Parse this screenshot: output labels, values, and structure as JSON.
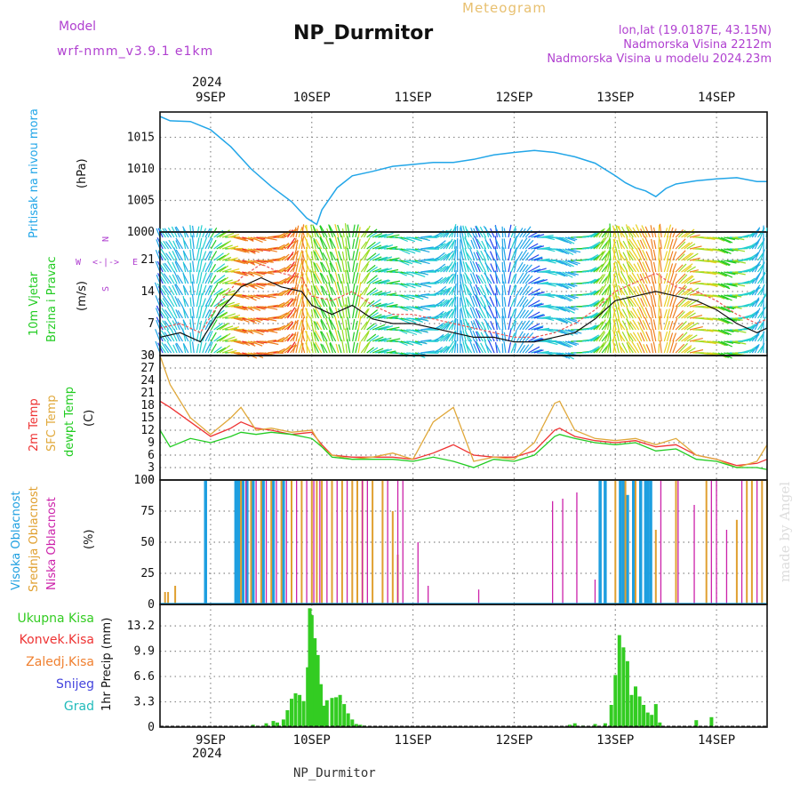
{
  "header": {
    "model_label": "Model",
    "model_name": "wrf-nmm_v3.9.1 e1km",
    "title": "NP_Durmitor",
    "subtitle": "Meteogram",
    "coords": "lon,lat (19.0187E, 43.15N)",
    "elevation": "Nadmorska Visina 2212m",
    "model_elevation": "Nadmorska Visina u modelu 2024.23m",
    "footer": "NP_Durmitor",
    "watermark": "made by Angel",
    "year_top": "2024",
    "year_bottom": "2024"
  },
  "colors": {
    "pressure": "#22a6e8",
    "temp2m": "#ee3333",
    "sfc": "#e0a83a",
    "dew": "#22cc22",
    "high_cloud": "#1e9fe0",
    "mid_cloud": "#e0a030",
    "low_cloud": "#cc22aa",
    "precip": "#33cc22",
    "label_purple": "#b040d0",
    "label_gold": "#e8c070"
  },
  "chart_data": [
    {
      "type": "line",
      "panel": "pressure",
      "ylabel_main": "Pritisak na nivou mora",
      "ylabel_unit": "(hPa)",
      "yticks": [
        1000,
        1005,
        1010,
        1015
      ],
      "ylim": [
        1000,
        1019
      ],
      "x_day_labels": [
        "9SEP",
        "10SEP",
        "11SEP",
        "12SEP",
        "13SEP",
        "14SEP"
      ],
      "xlim_days": [
        -0.5,
        5.5
      ],
      "x": [
        -0.5,
        -0.4,
        -0.2,
        0.0,
        0.2,
        0.4,
        0.6,
        0.8,
        0.95,
        1.05,
        1.1,
        1.25,
        1.4,
        1.6,
        1.8,
        2.0,
        2.2,
        2.4,
        2.6,
        2.8,
        3.0,
        3.2,
        3.4,
        3.6,
        3.8,
        4.0,
        4.1,
        4.2,
        4.3,
        4.4,
        4.5,
        4.6,
        4.8,
        5.0,
        5.2,
        5.4,
        5.5
      ],
      "y": [
        1018.3,
        1017.6,
        1017.5,
        1016.2,
        1013.5,
        1010.0,
        1007.2,
        1004.8,
        1002.2,
        1001.2,
        1003.5,
        1007.0,
        1008.9,
        1009.6,
        1010.4,
        1010.7,
        1011.0,
        1011.0,
        1011.5,
        1012.2,
        1012.6,
        1012.9,
        1012.6,
        1011.9,
        1010.9,
        1008.9,
        1007.8,
        1007.0,
        1006.5,
        1005.6,
        1006.9,
        1007.6,
        1008.1,
        1008.4,
        1008.6,
        1008.0,
        1008.0
      ]
    },
    {
      "type": "line",
      "panel": "wind",
      "ylabel_main": "10m Vjetar",
      "ylabel_sub": "Brzina i Pravac",
      "ylabel_unit": "(m/s)",
      "compass": [
        "N",
        "E",
        "S",
        "W"
      ],
      "yticks": [
        0,
        7,
        14,
        21
      ],
      "ylim": [
        0,
        27
      ],
      "x": [
        -0.5,
        -0.3,
        -0.1,
        0.1,
        0.3,
        0.5,
        0.7,
        0.9,
        1.0,
        1.2,
        1.4,
        1.6,
        1.8,
        2.0,
        2.2,
        2.4,
        2.6,
        2.8,
        3.0,
        3.2,
        3.4,
        3.6,
        3.8,
        4.0,
        4.2,
        4.4,
        4.6,
        4.8,
        5.0,
        5.2,
        5.4,
        5.5
      ],
      "series": [
        {
          "name": "wind_speed",
          "values": [
            4,
            5,
            3,
            10,
            15,
            17,
            15,
            14,
            11,
            9,
            11,
            8,
            7,
            7,
            6,
            5,
            4,
            4,
            3,
            3,
            4,
            5,
            8,
            12,
            13,
            14,
            13,
            12,
            10,
            7,
            5,
            6
          ]
        },
        {
          "name": "gust",
          "values": [
            6,
            7,
            5,
            12,
            17,
            20,
            18,
            17,
            13,
            12,
            14,
            11,
            9,
            9,
            8,
            7,
            6,
            5,
            4,
            4,
            5,
            7,
            10,
            14,
            16,
            18,
            15,
            14,
            12,
            9,
            7,
            8
          ]
        }
      ]
    },
    {
      "type": "line",
      "panel": "temperature",
      "ylabel_lines": [
        "2m Temp",
        "SFC Temp",
        "dewpt Temp"
      ],
      "ylabel_unit": "(C)",
      "yticks": [
        0,
        3,
        6,
        9,
        12,
        15,
        18,
        21,
        24,
        27,
        30
      ],
      "ylim": [
        0,
        30
      ],
      "x": [
        -0.5,
        -0.4,
        -0.2,
        0.0,
        0.2,
        0.3,
        0.45,
        0.6,
        0.8,
        1.0,
        1.1,
        1.2,
        1.4,
        1.6,
        1.8,
        2.0,
        2.2,
        2.4,
        2.6,
        2.8,
        3.0,
        3.2,
        3.4,
        3.45,
        3.6,
        3.8,
        4.0,
        4.2,
        4.4,
        4.6,
        4.8,
        5.0,
        5.2,
        5.4,
        5.5
      ],
      "series": [
        {
          "name": "2m Temp",
          "values": [
            19.0,
            17.5,
            14.0,
            10.5,
            12.5,
            14.0,
            12.5,
            12.0,
            11.0,
            11.5,
            8.5,
            6.0,
            5.5,
            5.5,
            5.5,
            5.0,
            6.5,
            8.5,
            6.0,
            5.5,
            5.5,
            7.0,
            12.0,
            12.5,
            10.5,
            9.5,
            9.0,
            9.5,
            8.0,
            8.5,
            6.0,
            5.0,
            3.5,
            4.0,
            5.0
          ]
        },
        {
          "name": "SFC Temp",
          "values": [
            30.0,
            23.0,
            15.0,
            11.0,
            15.0,
            17.5,
            12.0,
            12.5,
            11.5,
            12.0,
            8.0,
            6.0,
            5.0,
            5.5,
            6.5,
            5.0,
            14.0,
            17.5,
            4.5,
            5.5,
            5.0,
            9.0,
            18.5,
            19.0,
            12.0,
            10.0,
            9.5,
            10.0,
            8.5,
            10.0,
            6.0,
            5.0,
            3.0,
            4.5,
            8.5
          ]
        },
        {
          "name": "dewpt Temp",
          "values": [
            12.0,
            8.0,
            10.0,
            9.0,
            10.5,
            11.5,
            11.0,
            11.5,
            11.0,
            10.0,
            8.0,
            5.5,
            5.0,
            5.0,
            5.0,
            4.5,
            5.5,
            4.5,
            3.0,
            5.0,
            4.5,
            6.0,
            10.5,
            11.0,
            10.0,
            9.0,
            8.5,
            9.0,
            7.0,
            7.5,
            5.0,
            4.5,
            3.0,
            3.0,
            2.5
          ]
        }
      ]
    },
    {
      "type": "bar",
      "panel": "cloud",
      "ylabel_lines": [
        "Visoka Oblacnost",
        "Srednja Oblacnost",
        "Niska Oblacnost"
      ],
      "ylabel_unit": "(%)",
      "yticks": [
        0,
        25,
        50,
        75,
        100
      ],
      "ylim": [
        0,
        100
      ],
      "series": [
        {
          "name": "Visoka Oblacnost",
          "x": [
            -0.05,
            0.25,
            0.28,
            0.32,
            0.36,
            0.42,
            0.52,
            0.62,
            0.72,
            3.85,
            3.9,
            4.05,
            4.08,
            4.12,
            4.18,
            4.25,
            4.3,
            4.32,
            4.35
          ],
          "values": [
            100,
            100,
            100,
            100,
            100,
            100,
            100,
            100,
            100,
            100,
            100,
            100,
            100,
            88,
            100,
            100,
            100,
            100,
            100
          ]
        },
        {
          "name": "Srednja Oblacnost",
          "x": [
            -0.45,
            -0.42,
            -0.35,
            0.3,
            0.4,
            0.5,
            0.6,
            0.7,
            0.8,
            0.9,
            1.0,
            1.05,
            1.1,
            1.2,
            1.3,
            1.4,
            1.45,
            1.5,
            1.6,
            1.7,
            1.8,
            1.85,
            4.0,
            4.1,
            4.2,
            4.4,
            4.6,
            4.9,
            5.2,
            5.3,
            5.35,
            5.45,
            5.5
          ],
          "values": [
            10,
            10,
            15,
            100,
            100,
            100,
            100,
            100,
            100,
            100,
            100,
            100,
            100,
            100,
            100,
            100,
            100,
            100,
            100,
            100,
            75,
            40,
            100,
            100,
            100,
            60,
            100,
            100,
            68,
            100,
            100,
            100,
            100
          ]
        },
        {
          "name": "Niska Oblacnost",
          "x": [
            0.35,
            0.45,
            0.55,
            0.65,
            0.75,
            0.85,
            0.95,
            1.02,
            1.08,
            1.15,
            1.25,
            1.35,
            1.5,
            1.55,
            1.75,
            1.85,
            1.9,
            2.05,
            2.15,
            2.65,
            3.38,
            3.48,
            3.62,
            3.8,
            4.45,
            4.62,
            4.78,
            4.95,
            5.0,
            5.1,
            5.25,
            5.4
          ],
          "values": [
            100,
            100,
            100,
            100,
            100,
            100,
            100,
            100,
            100,
            100,
            100,
            100,
            100,
            100,
            100,
            100,
            100,
            50,
            15,
            12,
            83,
            85,
            90,
            20,
            100,
            100,
            80,
            100,
            100,
            60,
            100,
            100
          ]
        }
      ]
    },
    {
      "type": "bar",
      "panel": "precip",
      "legend": [
        "Ukupna Kisa",
        "Konvek.Kisa",
        "Zaledj.Kisa",
        "Snijeg",
        "Grad"
      ],
      "ylabel": "1hr Precip (mm)",
      "yticks": [
        0,
        3.3,
        6.6,
        9.9,
        13.2
      ],
      "ylim": [
        0,
        16
      ],
      "series": [
        {
          "name": "Ukupna Kisa",
          "x": [
            0.42,
            0.55,
            0.62,
            0.66,
            0.72,
            0.76,
            0.8,
            0.84,
            0.88,
            0.92,
            0.96,
            0.98,
            1.0,
            1.03,
            1.06,
            1.09,
            1.12,
            1.15,
            1.2,
            1.24,
            1.28,
            1.32,
            1.36,
            1.4,
            1.44,
            1.48,
            1.52,
            3.55,
            3.6,
            3.68,
            3.8,
            3.9,
            3.96,
            4.0,
            4.04,
            4.08,
            4.12,
            4.16,
            4.2,
            4.24,
            4.28,
            4.32,
            4.36,
            4.4,
            4.44,
            4.8,
            4.95
          ],
          "values": [
            0.3,
            0.5,
            0.8,
            0.6,
            1.0,
            2.2,
            3.7,
            4.4,
            4.2,
            3.4,
            7.8,
            15.5,
            14.6,
            11.6,
            9.4,
            5.6,
            2.8,
            3.5,
            3.8,
            3.9,
            4.2,
            3.0,
            1.8,
            1.0,
            0.4,
            0.3,
            0.2,
            0.3,
            0.5,
            0.2,
            0.4,
            0.5,
            2.9,
            6.8,
            12.0,
            10.4,
            8.6,
            4.2,
            5.3,
            4.0,
            2.9,
            1.9,
            1.6,
            3.0,
            0.6,
            0.9,
            1.3
          ]
        }
      ]
    }
  ]
}
